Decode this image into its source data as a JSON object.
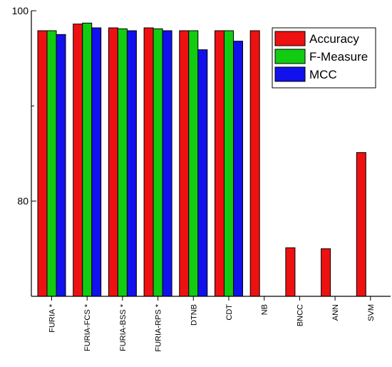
{
  "chart_data": {
    "type": "bar",
    "title": "",
    "xlabel": "",
    "ylabel": "",
    "ylim": [
      70,
      100
    ],
    "yticks": [
      {
        "value": 100,
        "label": "100"
      },
      {
        "value": 80,
        "label": "80"
      }
    ],
    "categories": [
      "FURIA *",
      "FURIA-FCS *",
      "FURIA-BSS *",
      "FURIA-RPS *",
      "DTNB",
      "CDT",
      "NB",
      "BNCC",
      "ANN",
      "SVM"
    ],
    "series": [
      {
        "name": "Accuracy",
        "color": "#ee1111",
        "values": [
          97.9,
          98.6,
          98.2,
          98.2,
          97.9,
          97.9,
          97.9,
          75.1,
          75.0,
          85.1
        ]
      },
      {
        "name": "F-Measure",
        "color": "#11cc11",
        "values": [
          97.9,
          98.7,
          98.1,
          98.1,
          97.9,
          97.9,
          null,
          null,
          null,
          null
        ]
      },
      {
        "name": "MCC",
        "color": "#1111ee",
        "values": [
          97.5,
          98.2,
          97.9,
          97.9,
          95.9,
          96.8,
          null,
          null,
          null,
          null
        ]
      }
    ],
    "grid": false,
    "legend": {
      "position": "top-right",
      "entries": [
        "Accuracy",
        "F-Measure",
        "MCC"
      ]
    }
  }
}
